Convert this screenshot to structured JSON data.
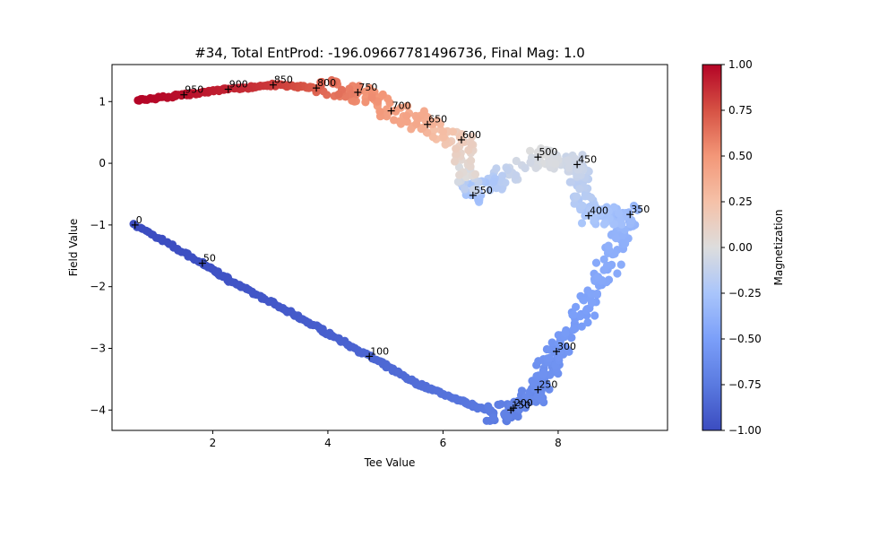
{
  "chart_data": {
    "type": "scatter",
    "title": "#34, Total EntProd: -196.09667781496736, Final Mag: 1.0",
    "xlabel": "Tee Value",
    "ylabel": "Field Value",
    "xlim": [
      0.25,
      9.9
    ],
    "ylim": [
      -4.33,
      1.6
    ],
    "xticks": [
      2,
      4,
      6,
      8
    ],
    "yticks": [
      -4,
      -3,
      -2,
      -1,
      0,
      1
    ],
    "grid": false,
    "colorbar": {
      "label": "Magnetization",
      "colormap": "coolwarm",
      "range": [
        -1.0,
        1.0
      ],
      "ticks": [
        "-1.00",
        "-0.75",
        "-0.50",
        "-0.25",
        "0.00",
        "0.25",
        "0.50",
        "0.75",
        "1.00"
      ],
      "colors": {
        "low": "#3b4cc0",
        "mid": "#dddddd",
        "high": "#b40426"
      }
    },
    "markers": [
      {
        "label": "0",
        "x": 0.65,
        "y": -1.0
      },
      {
        "label": "50",
        "x": 1.82,
        "y": -1.62
      },
      {
        "label": "100",
        "x": 4.72,
        "y": -3.13
      },
      {
        "label": "150",
        "x": 7.18,
        "y": -4.0
      },
      {
        "label": "200",
        "x": 7.22,
        "y": -3.97
      },
      {
        "label": "250",
        "x": 7.65,
        "y": -3.67
      },
      {
        "label": "300",
        "x": 7.97,
        "y": -3.05
      },
      {
        "label": "350",
        "x": 9.25,
        "y": -0.83
      },
      {
        "label": "400",
        "x": 8.53,
        "y": -0.85
      },
      {
        "label": "450",
        "x": 8.33,
        "y": -0.02
      },
      {
        "label": "500",
        "x": 7.65,
        "y": 0.1
      },
      {
        "label": "550",
        "x": 6.52,
        "y": -0.52
      },
      {
        "label": "600",
        "x": 6.32,
        "y": 0.38
      },
      {
        "label": "650",
        "x": 5.73,
        "y": 0.63
      },
      {
        "label": "700",
        "x": 5.1,
        "y": 0.85
      },
      {
        "label": "750",
        "x": 4.52,
        "y": 1.15
      },
      {
        "label": "800",
        "x": 3.8,
        "y": 1.22
      },
      {
        "label": "850",
        "x": 3.05,
        "y": 1.27
      },
      {
        "label": "900",
        "x": 2.27,
        "y": 1.2
      },
      {
        "label": "950",
        "x": 1.5,
        "y": 1.11
      }
    ],
    "path": [
      {
        "x": 0.65,
        "y": -1.0,
        "m": -1.0
      },
      {
        "x": 1.82,
        "y": -1.62,
        "m": -0.98
      },
      {
        "x": 2.3,
        "y": -1.9,
        "m": -0.96
      },
      {
        "x": 3.2,
        "y": -2.35,
        "m": -0.93
      },
      {
        "x": 3.9,
        "y": -2.7,
        "m": -0.9
      },
      {
        "x": 4.72,
        "y": -3.13,
        "m": -0.86
      },
      {
        "x": 5.5,
        "y": -3.55,
        "m": -0.82
      },
      {
        "x": 6.3,
        "y": -3.85,
        "m": -0.78
      },
      {
        "x": 6.9,
        "y": -4.05,
        "m": -0.74
      },
      {
        "x": 7.2,
        "y": -4.0,
        "m": -0.7
      },
      {
        "x": 7.5,
        "y": -3.8,
        "m": -0.66
      },
      {
        "x": 7.65,
        "y": -3.67,
        "m": -0.63
      },
      {
        "x": 7.8,
        "y": -3.35,
        "m": -0.6
      },
      {
        "x": 7.97,
        "y": -3.05,
        "m": -0.57
      },
      {
        "x": 8.3,
        "y": -2.6,
        "m": -0.52
      },
      {
        "x": 8.7,
        "y": -2.0,
        "m": -0.46
      },
      {
        "x": 9.0,
        "y": -1.4,
        "m": -0.4
      },
      {
        "x": 9.25,
        "y": -0.83,
        "m": -0.34
      },
      {
        "x": 8.9,
        "y": -0.85,
        "m": -0.28
      },
      {
        "x": 8.53,
        "y": -0.85,
        "m": -0.24
      },
      {
        "x": 8.4,
        "y": -0.4,
        "m": -0.17
      },
      {
        "x": 8.33,
        "y": -0.02,
        "m": -0.1
      },
      {
        "x": 8.0,
        "y": 0.05,
        "m": -0.05
      },
      {
        "x": 7.65,
        "y": 0.1,
        "m": 0.0
      },
      {
        "x": 7.0,
        "y": -0.25,
        "m": -0.15
      },
      {
        "x": 6.52,
        "y": -0.52,
        "m": -0.3
      },
      {
        "x": 6.4,
        "y": -0.1,
        "m": 0.05
      },
      {
        "x": 6.32,
        "y": 0.38,
        "m": 0.15
      },
      {
        "x": 5.73,
        "y": 0.63,
        "m": 0.35
      },
      {
        "x": 5.1,
        "y": 0.85,
        "m": 0.45
      },
      {
        "x": 4.52,
        "y": 1.15,
        "m": 0.55
      },
      {
        "x": 3.8,
        "y": 1.22,
        "m": 0.7
      },
      {
        "x": 3.05,
        "y": 1.27,
        "m": 0.82
      },
      {
        "x": 2.27,
        "y": 1.2,
        "m": 0.9
      },
      {
        "x": 1.5,
        "y": 1.11,
        "m": 0.96
      },
      {
        "x": 0.7,
        "y": 1.02,
        "m": 1.0
      }
    ]
  }
}
